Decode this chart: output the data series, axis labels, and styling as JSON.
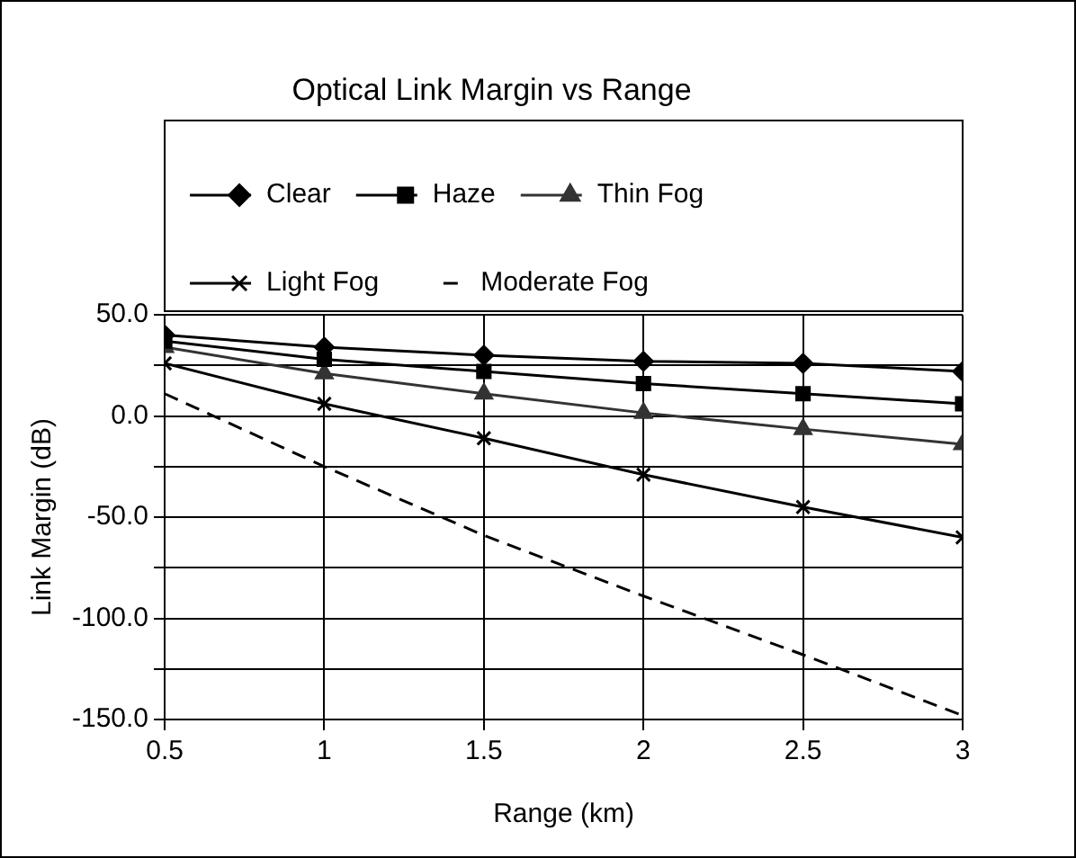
{
  "chart_data": {
    "type": "line",
    "title": "Optical Link Margin vs Range",
    "xlabel": "Range (km)",
    "ylabel": "Link Margin (dB)",
    "x": [
      0.5,
      1,
      1.5,
      2,
      2.5,
      3
    ],
    "xlim": [
      0.5,
      3
    ],
    "xticks": [
      0.5,
      1,
      1.5,
      2,
      2.5,
      3
    ],
    "ylim": [
      -150,
      50
    ],
    "yticks": [
      {
        "value": -150,
        "label": "-150.0"
      },
      {
        "value": -125,
        "label": null
      },
      {
        "value": -100,
        "label": "-100.0"
      },
      {
        "value": -75,
        "label": null
      },
      {
        "value": -50,
        "label": "-50.0"
      },
      {
        "value": -25,
        "label": null
      },
      {
        "value": 0,
        "label": "0.0"
      },
      {
        "value": 25,
        "label": null
      },
      {
        "value": 50,
        "label": "50.0"
      }
    ],
    "grid": true,
    "legend": "top",
    "series": [
      {
        "name": "Clear",
        "color": "#000000",
        "marker": "diamond",
        "line_style": "solid",
        "values": [
          40,
          34,
          30,
          27,
          26,
          22
        ]
      },
      {
        "name": "Haze",
        "color": "#000000",
        "marker": "square",
        "line_style": "solid",
        "values": [
          37,
          28,
          22,
          16,
          11,
          6
        ]
      },
      {
        "name": "Thin Fog",
        "color": "#333333",
        "marker": "triangle",
        "line_style": "solid",
        "values": [
          34,
          21,
          11,
          1.5,
          -6.5,
          -14
        ]
      },
      {
        "name": "Light Fog",
        "color": "#000000",
        "marker": "cross",
        "line_style": "solid",
        "values": [
          26,
          6,
          -11,
          -29,
          -45,
          -60
        ]
      },
      {
        "name": "Moderate Fog",
        "color": "#000000",
        "marker": "none",
        "line_style": "dashed",
        "values": [
          11,
          -25,
          -59,
          -89,
          -118,
          -148
        ]
      }
    ]
  }
}
